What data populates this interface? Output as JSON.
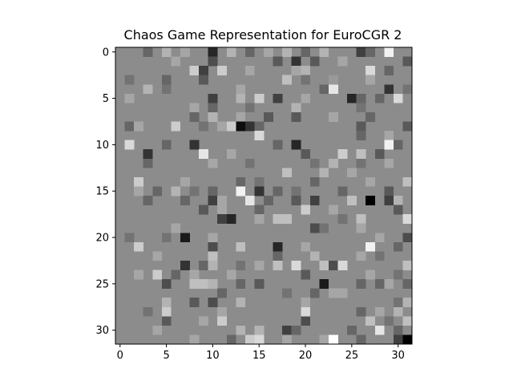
{
  "chart_data": {
    "type": "heatmap",
    "title": "Chaos Game Representation for EuroCGR 2",
    "xlabel": "",
    "ylabel": "",
    "colormap": "gray",
    "xlim": [
      -0.5,
      31.5
    ],
    "ylim": [
      31.5,
      -0.5
    ],
    "x_ticks": [
      0,
      5,
      10,
      15,
      20,
      25,
      30
    ],
    "y_ticks": [
      0,
      5,
      10,
      15,
      20,
      25,
      30
    ],
    "grid": false,
    "rows": 32,
    "cols": 32,
    "background_value": 0.55,
    "cells": [
      [
        0,
        5,
        0.7
      ],
      [
        0,
        10,
        0.15
      ],
      [
        0,
        22,
        0.7
      ],
      [
        0,
        26,
        0.25
      ],
      [
        0,
        29,
        0.95
      ],
      [
        0,
        3,
        0.4
      ],
      [
        0,
        7,
        0.65
      ],
      [
        0,
        12,
        0.7
      ],
      [
        0,
        14,
        0.4
      ],
      [
        0,
        16,
        0.65
      ],
      [
        0,
        18,
        0.7
      ],
      [
        0,
        20,
        0.4
      ],
      [
        0,
        27,
        0.4
      ],
      [
        1,
        10,
        0.3
      ],
      [
        1,
        17,
        0.35
      ],
      [
        1,
        19,
        0.2
      ],
      [
        1,
        21,
        0.35
      ],
      [
        1,
        24,
        0.65
      ],
      [
        1,
        31,
        0.35
      ],
      [
        1,
        6,
        0.65
      ],
      [
        2,
        8,
        0.8
      ],
      [
        2,
        11,
        0.8
      ],
      [
        2,
        9,
        0.25
      ],
      [
        2,
        19,
        0.65
      ],
      [
        2,
        20,
        0.7
      ],
      [
        2,
        27,
        0.85
      ],
      [
        2,
        29,
        0.4
      ],
      [
        2,
        14,
        0.65
      ],
      [
        3,
        1,
        0.45
      ],
      [
        3,
        5,
        0.4
      ],
      [
        3,
        9,
        0.35
      ],
      [
        3,
        18,
        0.75
      ],
      [
        3,
        20,
        0.45
      ],
      [
        3,
        23,
        0.6
      ],
      [
        3,
        27,
        0.65
      ],
      [
        4,
        3,
        0.7
      ],
      [
        4,
        5,
        0.45
      ],
      [
        4,
        13,
        0.65
      ],
      [
        4,
        22,
        0.4
      ],
      [
        4,
        23,
        0.9
      ],
      [
        4,
        29,
        0.2
      ],
      [
        4,
        31,
        0.45
      ],
      [
        5,
        10,
        0.25
      ],
      [
        5,
        13,
        0.7
      ],
      [
        5,
        15,
        0.8
      ],
      [
        5,
        17,
        0.25
      ],
      [
        5,
        20,
        0.65
      ],
      [
        5,
        25,
        0.15
      ],
      [
        5,
        26,
        0.4
      ],
      [
        5,
        28,
        0.4
      ],
      [
        5,
        30,
        0.85
      ],
      [
        5,
        1,
        0.65
      ],
      [
        6,
        8,
        0.65
      ],
      [
        6,
        10,
        0.4
      ],
      [
        6,
        14,
        0.45
      ],
      [
        6,
        19,
        0.7
      ],
      [
        6,
        26,
        0.45
      ],
      [
        7,
        8,
        0.4
      ],
      [
        7,
        10,
        0.7
      ],
      [
        7,
        13,
        0.65
      ],
      [
        7,
        16,
        0.35
      ],
      [
        7,
        19,
        0.35
      ],
      [
        7,
        23,
        0.65
      ],
      [
        7,
        27,
        0.4
      ],
      [
        8,
        1,
        0.4
      ],
      [
        8,
        6,
        0.8
      ],
      [
        8,
        9,
        0.45
      ],
      [
        8,
        11,
        0.65
      ],
      [
        8,
        12,
        0.8
      ],
      [
        8,
        13,
        0.05
      ],
      [
        8,
        14,
        0.2
      ],
      [
        8,
        15,
        0.4
      ],
      [
        8,
        26,
        0.35
      ],
      [
        8,
        31,
        0.35
      ],
      [
        8,
        2,
        0.65
      ],
      [
        9,
        15,
        0.85
      ],
      [
        9,
        26,
        0.4
      ],
      [
        9,
        29,
        0.65
      ],
      [
        10,
        1,
        0.85
      ],
      [
        10,
        5,
        0.4
      ],
      [
        10,
        8,
        0.2
      ],
      [
        10,
        17,
        0.4
      ],
      [
        10,
        19,
        0.15
      ],
      [
        10,
        29,
        0.95
      ],
      [
        10,
        30,
        0.4
      ],
      [
        11,
        3,
        0.2
      ],
      [
        11,
        9,
        0.9
      ],
      [
        11,
        12,
        0.65
      ],
      [
        11,
        20,
        0.35
      ],
      [
        11,
        24,
        0.8
      ],
      [
        11,
        26,
        0.75
      ],
      [
        11,
        28,
        0.35
      ],
      [
        12,
        3,
        0.4
      ],
      [
        12,
        10,
        0.65
      ],
      [
        12,
        14,
        0.45
      ],
      [
        12,
        21,
        0.45
      ],
      [
        12,
        23,
        0.7
      ],
      [
        12,
        26,
        0.45
      ],
      [
        12,
        29,
        0.65
      ],
      [
        13,
        18,
        0.75
      ],
      [
        13,
        22,
        0.7
      ],
      [
        13,
        25,
        0.65
      ],
      [
        14,
        2,
        0.8
      ],
      [
        14,
        7,
        0.65
      ],
      [
        14,
        13,
        0.4
      ],
      [
        14,
        15,
        0.45
      ],
      [
        14,
        21,
        0.4
      ],
      [
        14,
        31,
        0.75
      ],
      [
        14,
        27,
        0.65
      ],
      [
        15,
        4,
        0.4
      ],
      [
        15,
        6,
        0.7
      ],
      [
        15,
        8,
        0.45
      ],
      [
        15,
        10,
        0.4
      ],
      [
        15,
        13,
        0.95
      ],
      [
        15,
        15,
        0.2
      ],
      [
        15,
        17,
        0.4
      ],
      [
        15,
        19,
        0.45
      ],
      [
        15,
        24,
        0.4
      ],
      [
        15,
        29,
        0.35
      ],
      [
        15,
        2,
        0.65
      ],
      [
        16,
        3,
        0.4
      ],
      [
        16,
        7,
        0.4
      ],
      [
        16,
        10,
        0.25
      ],
      [
        16,
        14,
        0.9
      ],
      [
        16,
        16,
        0.4
      ],
      [
        16,
        19,
        0.35
      ],
      [
        16,
        21,
        0.25
      ],
      [
        16,
        25,
        0.75
      ],
      [
        16,
        27,
        0.0
      ],
      [
        16,
        29,
        0.25
      ],
      [
        16,
        30,
        0.7
      ],
      [
        16,
        11,
        0.65
      ],
      [
        17,
        9,
        0.35
      ],
      [
        17,
        11,
        0.65
      ],
      [
        17,
        15,
        0.4
      ],
      [
        17,
        20,
        0.8
      ],
      [
        17,
        30,
        0.35
      ],
      [
        17,
        23,
        0.65
      ],
      [
        18,
        11,
        0.25
      ],
      [
        18,
        12,
        0.15
      ],
      [
        18,
        17,
        0.75
      ],
      [
        18,
        18,
        0.75
      ],
      [
        18,
        24,
        0.45
      ],
      [
        18,
        26,
        0.75
      ],
      [
        18,
        31,
        0.85
      ],
      [
        18,
        15,
        0.65
      ],
      [
        19,
        6,
        0.65
      ],
      [
        19,
        21,
        0.3
      ],
      [
        19,
        22,
        0.45
      ],
      [
        19,
        26,
        0.65
      ],
      [
        20,
        1,
        0.45
      ],
      [
        20,
        5,
        0.45
      ],
      [
        20,
        7,
        0.1
      ],
      [
        20,
        10,
        0.65
      ],
      [
        20,
        31,
        0.3
      ],
      [
        20,
        28,
        0.65
      ],
      [
        21,
        2,
        0.8
      ],
      [
        21,
        10,
        0.3
      ],
      [
        21,
        13,
        0.75
      ],
      [
        21,
        17,
        0.15
      ],
      [
        21,
        27,
        0.95
      ],
      [
        21,
        30,
        0.4
      ],
      [
        21,
        20,
        0.65
      ],
      [
        22,
        4,
        0.65
      ],
      [
        22,
        10,
        0.75
      ],
      [
        22,
        17,
        0.4
      ],
      [
        22,
        21,
        0.7
      ],
      [
        22,
        26,
        0.65
      ],
      [
        22,
        28,
        0.45
      ],
      [
        23,
        7,
        0.2
      ],
      [
        23,
        9,
        0.4
      ],
      [
        23,
        10,
        0.7
      ],
      [
        23,
        13,
        0.45
      ],
      [
        23,
        17,
        0.75
      ],
      [
        23,
        19,
        0.85
      ],
      [
        23,
        22,
        0.75
      ],
      [
        23,
        23,
        0.3
      ],
      [
        23,
        24,
        0.85
      ],
      [
        23,
        31,
        0.75
      ],
      [
        23,
        15,
        0.65
      ],
      [
        24,
        4,
        0.8
      ],
      [
        24,
        6,
        0.4
      ],
      [
        24,
        8,
        0.65
      ],
      [
        24,
        12,
        0.65
      ],
      [
        24,
        20,
        0.35
      ],
      [
        24,
        27,
        0.65
      ],
      [
        24,
        30,
        0.45
      ],
      [
        24,
        2,
        0.65
      ],
      [
        25,
        5,
        0.3
      ],
      [
        25,
        8,
        0.75
      ],
      [
        25,
        9,
        0.75
      ],
      [
        25,
        10,
        0.7
      ],
      [
        25,
        13,
        0.4
      ],
      [
        25,
        15,
        0.35
      ],
      [
        25,
        22,
        0.1
      ],
      [
        25,
        26,
        0.4
      ],
      [
        25,
        28,
        0.4
      ],
      [
        25,
        29,
        0.65
      ],
      [
        25,
        31,
        0.4
      ],
      [
        26,
        11,
        0.4
      ],
      [
        26,
        18,
        0.45
      ],
      [
        26,
        21,
        0.4
      ],
      [
        26,
        23,
        0.65
      ],
      [
        26,
        24,
        0.65
      ],
      [
        27,
        5,
        0.7
      ],
      [
        27,
        8,
        0.35
      ],
      [
        27,
        10,
        0.3
      ],
      [
        27,
        13,
        0.7
      ],
      [
        27,
        30,
        0.45
      ],
      [
        27,
        31,
        0.7
      ],
      [
        27,
        20,
        0.65
      ],
      [
        28,
        3,
        0.45
      ],
      [
        28,
        5,
        0.8
      ],
      [
        28,
        11,
        0.65
      ],
      [
        28,
        20,
        0.85
      ],
      [
        28,
        26,
        0.4
      ],
      [
        28,
        30,
        0.7
      ],
      [
        28,
        28,
        0.65
      ],
      [
        29,
        5,
        0.35
      ],
      [
        29,
        9,
        0.65
      ],
      [
        29,
        11,
        0.8
      ],
      [
        29,
        20,
        0.3
      ],
      [
        29,
        27,
        0.75
      ],
      [
        29,
        29,
        0.45
      ],
      [
        29,
        31,
        0.75
      ],
      [
        30,
        13,
        0.7
      ],
      [
        30,
        15,
        0.7
      ],
      [
        30,
        18,
        0.25
      ],
      [
        30,
        19,
        0.4
      ],
      [
        30,
        25,
        0.4
      ],
      [
        30,
        28,
        0.9
      ],
      [
        30,
        30,
        0.4
      ],
      [
        30,
        4,
        0.65
      ],
      [
        31,
        8,
        0.65
      ],
      [
        31,
        12,
        0.4
      ],
      [
        31,
        14,
        0.8
      ],
      [
        31,
        15,
        0.85
      ],
      [
        31,
        18,
        0.65
      ],
      [
        31,
        23,
        1.0
      ],
      [
        31,
        26,
        0.4
      ],
      [
        31,
        30,
        0.25
      ],
      [
        31,
        31,
        0.0
      ],
      [
        31,
        22,
        0.65
      ]
    ]
  }
}
